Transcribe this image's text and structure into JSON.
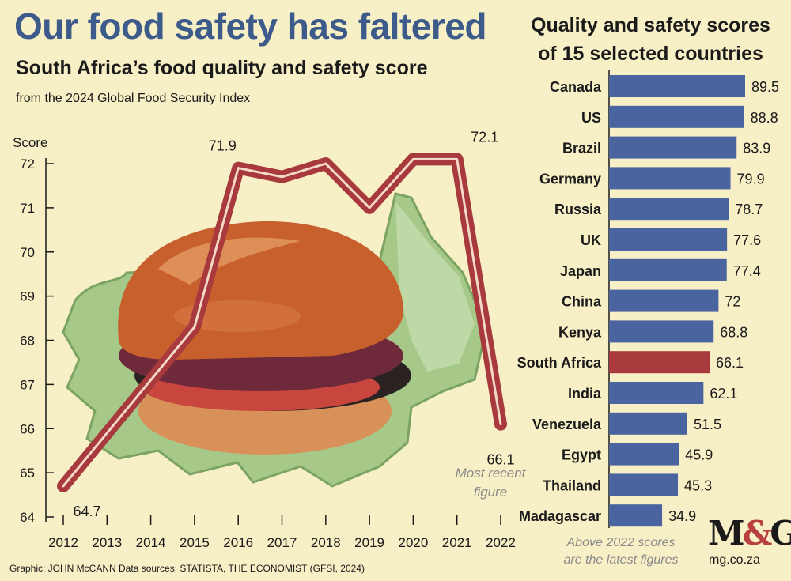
{
  "header": {
    "title": "Our food safety has faltered",
    "subtitle": "South Africa’s food quality and safety score",
    "source_line": "from the 2024 Global Food Security Index"
  },
  "bar_panel": {
    "title_line1": "Quality and safety scores",
    "title_line2": "of 15 selected countries",
    "note_line1": "Above 2022 scores",
    "note_line2": "are the latest figures"
  },
  "footer": {
    "credits": "Graphic: JOHN McCANN  Data sources: STATISTA, THE ECONOMIST (GFSI, 2024)",
    "logo_m": "M",
    "logo_amp": "&",
    "logo_g": "G",
    "site": "mg.co.za"
  },
  "colors": {
    "line": "#a8393c",
    "bar": "#4a64a0",
    "bar_highlight": "#a8393c",
    "title": "#3c5a8a"
  },
  "chart_data": [
    {
      "type": "line",
      "title": "South Africa’s food quality and safety score",
      "ylabel": "Score",
      "xlabel": "",
      "x": [
        2012,
        2013,
        2014,
        2015,
        2016,
        2017,
        2018,
        2019,
        2020,
        2021,
        2022
      ],
      "values": [
        64.7,
        65.9,
        67.1,
        68.3,
        71.9,
        71.7,
        72.0,
        71.0,
        72.1,
        72.1,
        66.1
      ],
      "ylim": [
        64,
        72
      ],
      "yticks": [
        "64",
        "65",
        "66",
        "67",
        "68",
        "69",
        "70",
        "71",
        "72"
      ],
      "xticks": [
        "2012",
        "2013",
        "2014",
        "2015",
        "2016",
        "2017",
        "2018",
        "2019",
        "2020",
        "2021",
        "2022"
      ],
      "data_labels": [
        {
          "year": 2012,
          "value": 64.7,
          "text": "64.7"
        },
        {
          "year": 2016,
          "value": 71.9,
          "text": "71.9"
        },
        {
          "year": 2021,
          "value": 72.1,
          "text": "72.1"
        },
        {
          "year": 2022,
          "value": 66.1,
          "text": "66.1"
        }
      ],
      "annotation_line1": "Most recent",
      "annotation_line2": "figure"
    },
    {
      "type": "bar",
      "orientation": "horizontal",
      "title": "Quality and safety scores of 15 selected countries",
      "categories": [
        "Canada",
        "US",
        "Brazil",
        "Germany",
        "Russia",
        "UK",
        "Japan",
        "China",
        "Kenya",
        "South Africa",
        "India",
        "Venezuela",
        "Egypt",
        "Thailand",
        "Madagascar"
      ],
      "values": [
        89.5,
        88.8,
        83.9,
        79.9,
        78.7,
        77.6,
        77.4,
        72,
        68.8,
        66.1,
        62.1,
        51.5,
        45.9,
        45.3,
        34.9
      ],
      "value_labels": [
        "89.5",
        "88.8",
        "83.9",
        "79.9",
        "78.7",
        "77.6",
        "77.4",
        "72",
        "68.8",
        "66.1",
        "62.1",
        "51.5",
        "45.9",
        "45.3",
        "34.9"
      ],
      "highlight": "South Africa",
      "xlim": [
        0,
        89.5
      ]
    }
  ]
}
